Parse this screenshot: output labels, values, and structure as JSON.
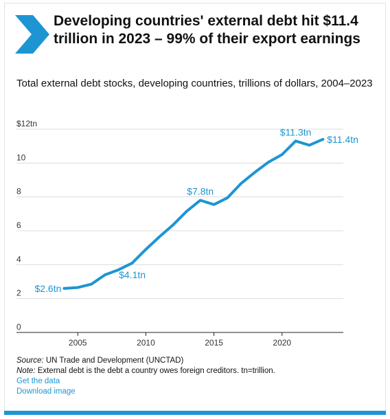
{
  "header": {
    "title": "Developing countries' external debt hit $11.4 trillion in 2023 – 99% of their export earnings",
    "subtitle": "Total external debt stocks, developing countries, trillions of dollars, 2004–2023"
  },
  "chart_data": {
    "type": "line",
    "x": [
      2004,
      2005,
      2006,
      2007,
      2008,
      2009,
      2010,
      2011,
      2012,
      2013,
      2014,
      2015,
      2016,
      2017,
      2018,
      2019,
      2020,
      2021,
      2022,
      2023
    ],
    "series": [
      {
        "values": [
          2.6,
          2.65,
          2.85,
          3.4,
          3.7,
          4.1,
          4.9,
          5.65,
          6.35,
          7.15,
          7.8,
          7.55,
          7.95,
          8.8,
          9.45,
          10.05,
          10.5,
          11.3,
          11.05,
          11.4
        ]
      }
    ],
    "xlim": [
      2000.5,
      2024.5
    ],
    "ylim": [
      0,
      12
    ],
    "y_ticks": [
      0,
      2,
      4,
      6,
      8,
      10,
      12
    ],
    "y_tick_labels": [
      "0",
      "2",
      "4",
      "6",
      "8",
      "10",
      "$12tn"
    ],
    "x_ticks": [
      2005,
      2010,
      2015,
      2020
    ],
    "x_tick_labels": [
      "2005",
      "2010",
      "2015",
      "2020"
    ],
    "annotations": [
      {
        "x": 2004,
        "y": 2.6,
        "text": "$2.6tn",
        "placement": "left"
      },
      {
        "x": 2009,
        "y": 4.1,
        "text": "$4.1tn",
        "placement": "below"
      },
      {
        "x": 2014,
        "y": 7.8,
        "text": "$7.8tn",
        "placement": "above"
      },
      {
        "x": 2021,
        "y": 11.3,
        "text": "$11.3tn",
        "placement": "above"
      },
      {
        "x": 2023,
        "y": 11.4,
        "text": "$11.4tn",
        "placement": "right"
      }
    ],
    "grid": true,
    "line_color": "#1d95d3",
    "label_color": "#1d95d3"
  },
  "footer": {
    "source_label": "Source:",
    "source_text": " UN Trade and Development (UNCTAD)",
    "note_label": "Note:",
    "note_text": " External debt is the debt a country owes foreign creditors. tn=trillion.",
    "link_data": "Get the data",
    "link_image": "Download image"
  },
  "colors": {
    "accent": "#1d95d3",
    "grid": "#dcdcdc",
    "axis": "#222222"
  }
}
